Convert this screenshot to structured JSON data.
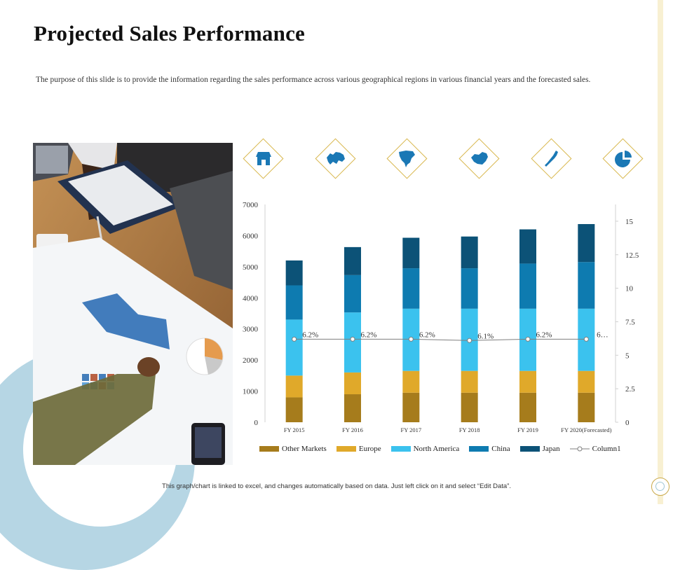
{
  "slide": {
    "title": "Projected Sales Performance",
    "description": "The purpose of this slide is to provide the information regarding the sales performance across various geographical regions in various financial years and the forecasted sales.",
    "footer": "This graph/chart is linked to excel, and changes automatically based on data. Just left click on it and select “Edit Data”."
  },
  "icons": [
    "store-icon",
    "europe-map-icon",
    "north-america-map-icon",
    "china-map-icon",
    "japan-map-icon",
    "pie-chart-icon"
  ],
  "colors": {
    "other_markets": "#a67c1c",
    "europe": "#e0a92a",
    "north_america": "#3bc2ee",
    "china": "#0e7bb0",
    "japan": "#0c5277",
    "column1": "#7f7f7f",
    "accent_gold": "#d8b64a"
  },
  "chart_data": {
    "type": "bar",
    "stacked": true,
    "categories": [
      "FY 2015",
      "FY 2016",
      "FY 2017",
      "FY 2018",
      "FY 2019",
      "FY 2020(Forecasted)"
    ],
    "series": [
      {
        "name": "Other Markets",
        "values": [
          800,
          900,
          950,
          950,
          950,
          950
        ]
      },
      {
        "name": "Europe",
        "values": [
          700,
          700,
          700,
          700,
          700,
          700
        ]
      },
      {
        "name": "North America",
        "values": [
          1800,
          1930,
          2000,
          2000,
          2000,
          2000
        ]
      },
      {
        "name": "China",
        "values": [
          1100,
          1200,
          1300,
          1300,
          1450,
          1500
        ]
      },
      {
        "name": "Japan",
        "values": [
          800,
          900,
          980,
          1020,
          1100,
          1220
        ]
      }
    ],
    "line_series": {
      "name": "Column1",
      "axis": "secondary",
      "values": [
        6.2,
        6.2,
        6.2,
        6.1,
        6.2,
        6.2
      ],
      "labels": [
        "6.2%",
        "6.2%",
        "6.2%",
        "6.1%",
        "6.2%",
        "6…"
      ]
    },
    "ylim": [
      0,
      7000
    ],
    "yticks": [
      "0",
      "1000",
      "2000",
      "3000",
      "4000",
      "5000",
      "6000",
      "7000"
    ],
    "y2lim": [
      0,
      16.25
    ],
    "y2ticks": [
      "0",
      "2.5",
      "5",
      "7.5",
      "10",
      "12.5",
      "15"
    ],
    "legend": "bottom",
    "grid": false
  }
}
